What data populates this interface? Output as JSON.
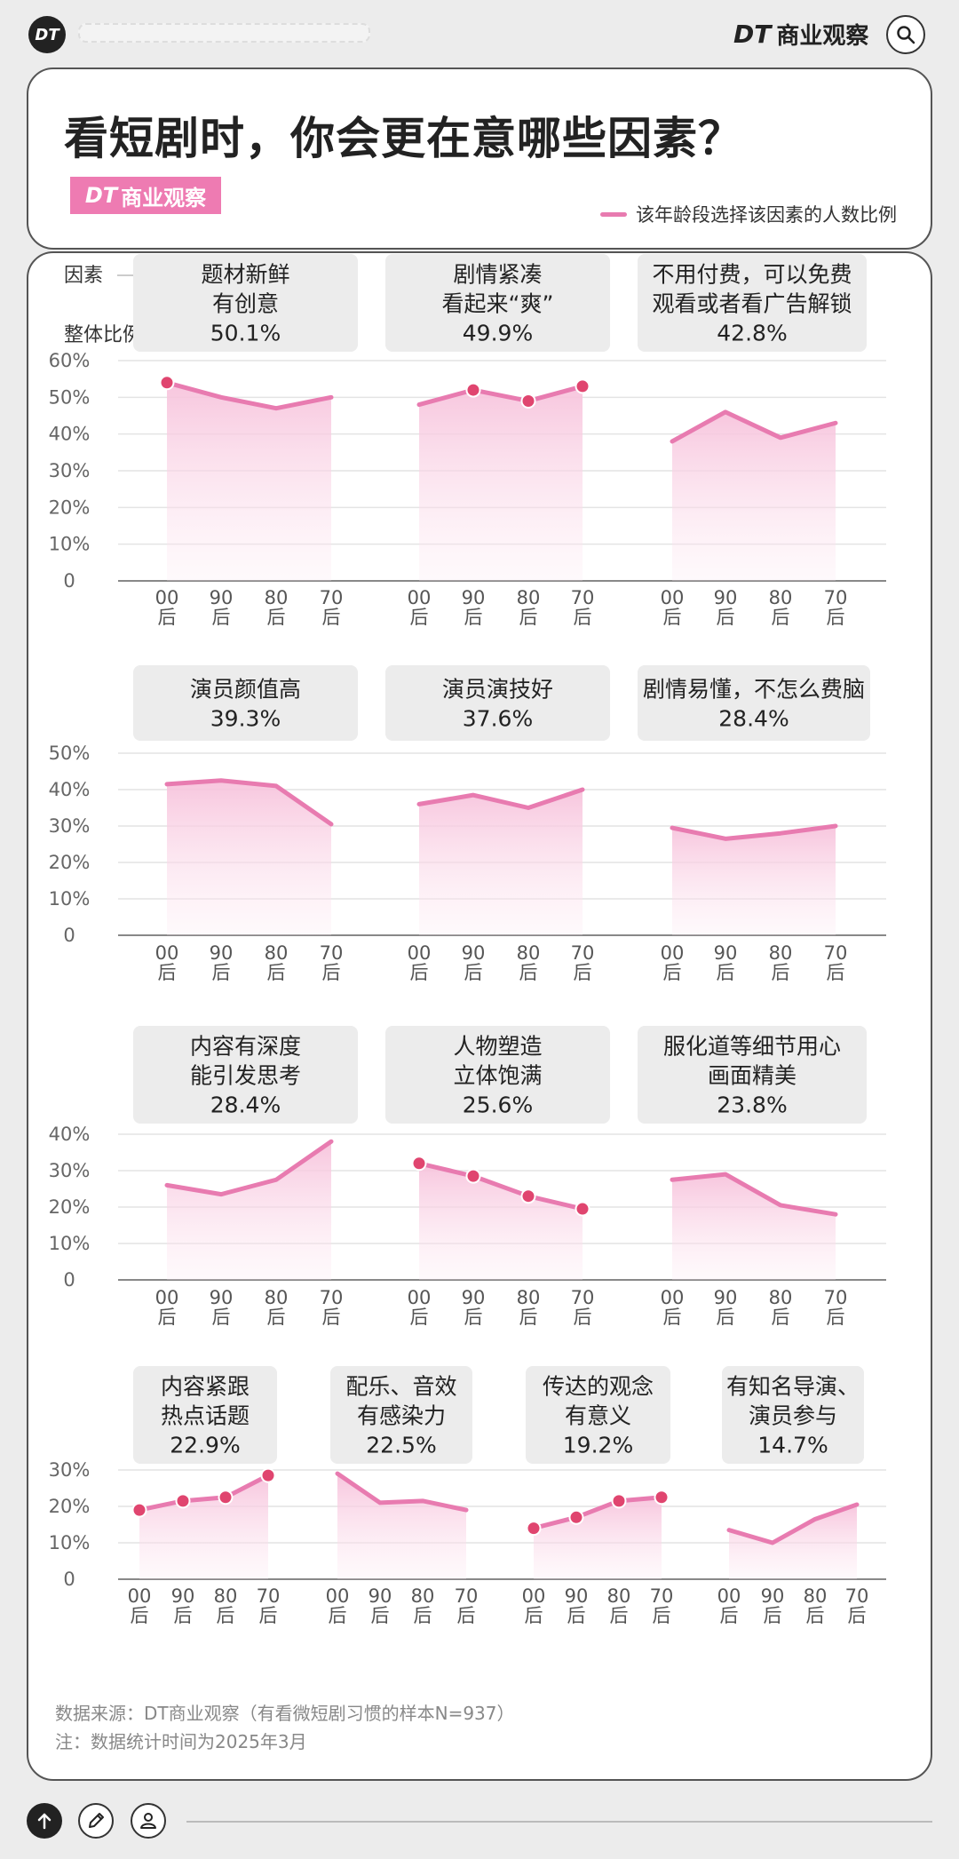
{
  "topbar": {
    "logo_text": "DT",
    "brand_dt": "DT",
    "brand_name": "商业观察"
  },
  "header": {
    "title": "看短剧时，你会更在意哪些因素？",
    "brand_tag_dt": "DT",
    "brand_tag_name": "商业观察",
    "legend_label": "该年龄段选择该因素的人数比例"
  },
  "side_labels": {
    "factor": "因素",
    "overall": "整体比例"
  },
  "colors": {
    "accent": "#e87bb0",
    "dot": "#e0456f",
    "badge_bg": "#ececec",
    "brand": "#ee7bb2"
  },
  "chart_data": {
    "type": "line",
    "x_categories": [
      [
        "00",
        "后"
      ],
      [
        "90",
        "后"
      ],
      [
        "80",
        "后"
      ],
      [
        "70",
        "后"
      ]
    ],
    "groups": [
      {
        "ylim": [
          0,
          60
        ],
        "yticks": [
          "60%",
          "50%",
          "40%",
          "30%",
          "20%",
          "10%",
          "0"
        ],
        "panels": [
          {
            "lines": [
              "题材新鲜",
              "有创意"
            ],
            "overall": "50.1%",
            "values": [
              54,
              50,
              47,
              50
            ],
            "highlight": [
              true,
              false,
              false,
              false
            ]
          },
          {
            "lines": [
              "剧情紧凑",
              "看起来“爽”"
            ],
            "overall": "49.9%",
            "values": [
              48,
              52,
              49,
              53
            ],
            "highlight": [
              false,
              true,
              true,
              true
            ]
          },
          {
            "lines": [
              "不用付费，可以免费",
              "观看或者看广告解锁"
            ],
            "overall": "42.8%",
            "values": [
              38,
              46,
              39,
              43
            ],
            "highlight": [
              false,
              false,
              false,
              false
            ]
          }
        ]
      },
      {
        "ylim": [
          0,
          50
        ],
        "yticks": [
          "50%",
          "40%",
          "30%",
          "20%",
          "10%",
          "0"
        ],
        "panels": [
          {
            "lines": [
              "演员颜值高"
            ],
            "overall": "39.3%",
            "values": [
              41.5,
              42.5,
              41,
              30.5
            ],
            "highlight": [
              false,
              false,
              false,
              false
            ]
          },
          {
            "lines": [
              "演员演技好"
            ],
            "overall": "37.6%",
            "values": [
              36,
              38.5,
              35,
              40
            ],
            "highlight": [
              false,
              false,
              false,
              false
            ]
          },
          {
            "lines": [
              "剧情易懂，不怎么费脑"
            ],
            "overall": "28.4%",
            "values": [
              29.5,
              26.5,
              28,
              30
            ],
            "highlight": [
              false,
              false,
              false,
              false
            ]
          }
        ]
      },
      {
        "ylim": [
          0,
          40
        ],
        "yticks": [
          "40%",
          "30%",
          "20%",
          "10%",
          "0"
        ],
        "panels": [
          {
            "lines": [
              "内容有深度",
              "能引发思考"
            ],
            "overall": "28.4%",
            "values": [
              26,
              23.5,
              27.5,
              38
            ],
            "highlight": [
              false,
              false,
              false,
              false
            ]
          },
          {
            "lines": [
              "人物塑造",
              "立体饱满"
            ],
            "overall": "25.6%",
            "values": [
              32,
              28.5,
              23,
              19.5
            ],
            "highlight": [
              true,
              true,
              true,
              true
            ]
          },
          {
            "lines": [
              "服化道等细节用心",
              "画面精美"
            ],
            "overall": "23.8%",
            "values": [
              27.5,
              29,
              20.5,
              18
            ],
            "highlight": [
              false,
              false,
              false,
              false
            ]
          }
        ]
      },
      {
        "ylim": [
          0,
          30
        ],
        "yticks": [
          "30%",
          "20%",
          "10%",
          "0"
        ],
        "panels": [
          {
            "lines": [
              "内容紧跟",
              "热点话题"
            ],
            "overall": "22.9%",
            "values": [
              19,
              21.5,
              22.5,
              28.5
            ],
            "highlight": [
              true,
              true,
              true,
              true
            ]
          },
          {
            "lines": [
              "配乐、音效",
              "有感染力"
            ],
            "overall": "22.5%",
            "values": [
              29,
              21,
              21.5,
              19
            ],
            "highlight": [
              false,
              false,
              false,
              false
            ]
          },
          {
            "lines": [
              "传达的观念",
              "有意义"
            ],
            "overall": "19.2%",
            "values": [
              14,
              17,
              21.5,
              22.5
            ],
            "highlight": [
              true,
              true,
              true,
              true
            ]
          },
          {
            "lines": [
              "有知名导演、",
              "演员参与"
            ],
            "overall": "14.7%",
            "values": [
              13.5,
              10,
              16.5,
              20.5
            ],
            "highlight": [
              false,
              false,
              false,
              false
            ]
          }
        ]
      }
    ]
  },
  "footer": {
    "source": "数据来源：DT商业观察（有看微短剧习惯的样本N=937）",
    "note": "注：数据统计时间为2025年3月"
  }
}
